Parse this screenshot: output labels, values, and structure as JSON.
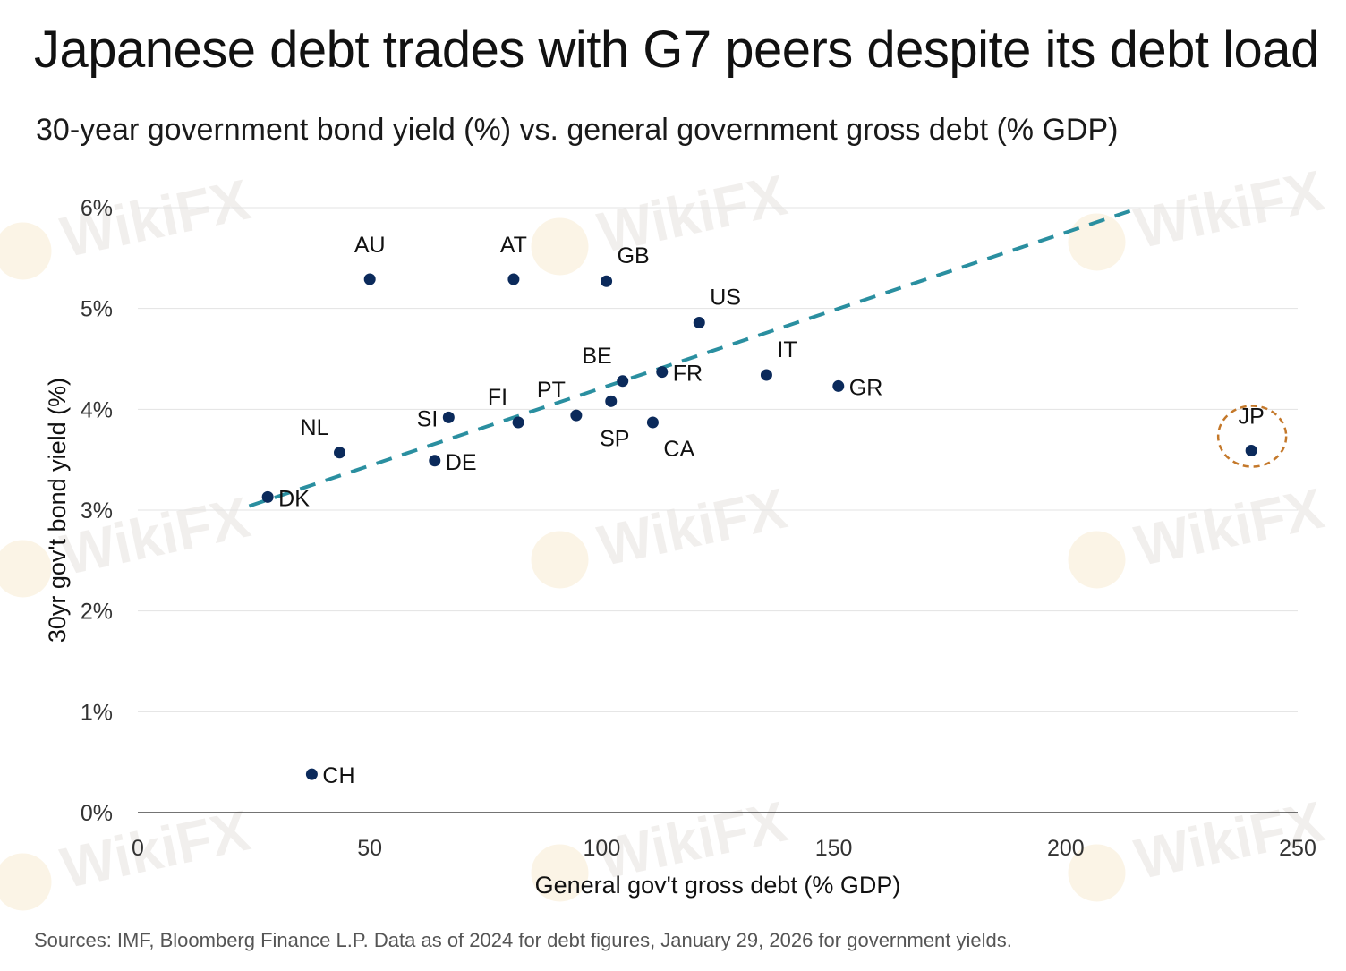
{
  "title": "Japanese debt trades with G7 peers despite its debt load",
  "subtitle": "30-year government bond yield (%) vs. general government gross debt (% GDP)",
  "footer": "Sources: IMF, Bloomberg Finance L.P. Data as of 2024 for debt figures, January 29, 2026 for government yields.",
  "watermark": "WikiFX",
  "colors": {
    "point": "#0b2a5b",
    "trend": "#2a8fa0",
    "highlight": "#c4782a",
    "grid": "#e3e3e3",
    "axis": "#222222"
  },
  "chart_data": {
    "type": "scatter",
    "xlabel": "General gov't gross debt (% GDP)",
    "ylabel": "30yr gov't bond yield (%)",
    "xlim": [
      0,
      250
    ],
    "ylim": [
      0,
      6
    ],
    "xticks": [
      0,
      50,
      100,
      150,
      200,
      250
    ],
    "yticks": [
      0,
      1,
      2,
      3,
      4,
      5,
      6
    ],
    "ytick_labels": [
      "0%",
      "1%",
      "2%",
      "3%",
      "4%",
      "5%",
      "6%"
    ],
    "points": [
      {
        "label": "AU",
        "x": 50.0,
        "y": 5.29,
        "label_pos": "above"
      },
      {
        "label": "AT",
        "x": 81.0,
        "y": 5.29,
        "label_pos": "above"
      },
      {
        "label": "GB",
        "x": 101.0,
        "y": 5.27,
        "label_pos": "upper-right"
      },
      {
        "label": "US",
        "x": 121.0,
        "y": 4.86,
        "label_pos": "upper-right"
      },
      {
        "label": "BE",
        "x": 104.5,
        "y": 4.28,
        "label_pos": "upper-left"
      },
      {
        "label": "FR",
        "x": 113.0,
        "y": 4.37,
        "label_pos": "right"
      },
      {
        "label": "IT",
        "x": 135.5,
        "y": 4.34,
        "label_pos": "upper-right"
      },
      {
        "label": "GR",
        "x": 151.0,
        "y": 4.23,
        "label_pos": "right"
      },
      {
        "label": "FI",
        "x": 82.0,
        "y": 3.87,
        "label_pos": "upper-left"
      },
      {
        "label": "PT",
        "x": 94.5,
        "y": 3.94,
        "label_pos": "upper-left"
      },
      {
        "label": "SP",
        "x": 102.0,
        "y": 4.08,
        "label_pos": "below"
      },
      {
        "label": "CA",
        "x": 111.0,
        "y": 3.87,
        "label_pos": "lower-right"
      },
      {
        "label": "SI",
        "x": 67.0,
        "y": 3.92,
        "label_pos": "left"
      },
      {
        "label": "NL",
        "x": 43.5,
        "y": 3.57,
        "label_pos": "upper-left"
      },
      {
        "label": "DE",
        "x": 64.0,
        "y": 3.49,
        "label_pos": "right"
      },
      {
        "label": "DK",
        "x": 28.0,
        "y": 3.13,
        "label_pos": "right"
      },
      {
        "label": "CH",
        "x": 37.5,
        "y": 0.38,
        "label_pos": "right"
      },
      {
        "label": "JP",
        "x": 240.0,
        "y": 3.59,
        "label_pos": "above",
        "highlight": true
      }
    ],
    "trendline": {
      "x": [
        24.0,
        216.0
      ],
      "y": [
        3.04,
        6.0
      ],
      "style": "dashed"
    }
  }
}
